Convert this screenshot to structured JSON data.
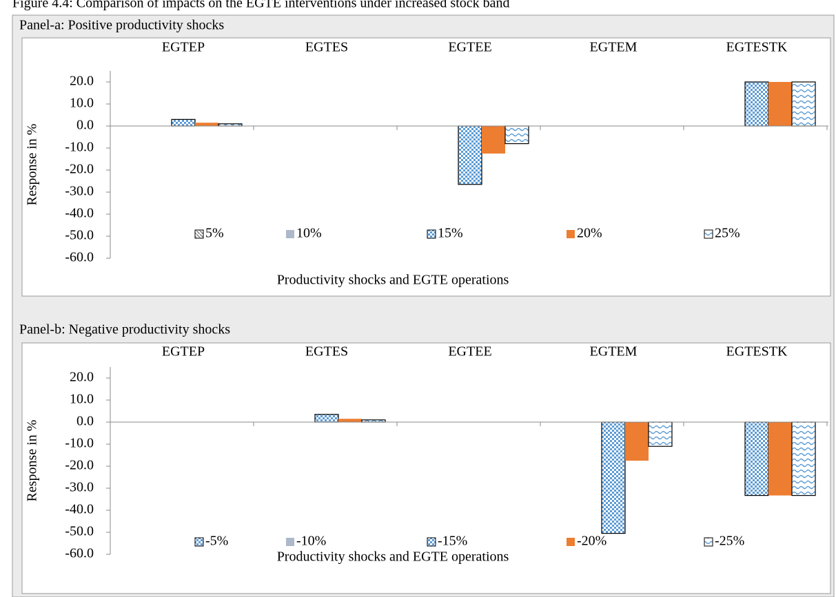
{
  "figure_title": "Figure 4.4: Comparison of impacts on the EGTE interventions under increased stock band",
  "chart_data": [
    {
      "type": "bar",
      "title": "Panel-a: Positive productivity shocks",
      "categories": [
        "EGTEP",
        "EGTES",
        "EGTEE",
        "EGTEM",
        "EGTESTK"
      ],
      "series": [
        {
          "name": "5%",
          "color": "#7f7f7f",
          "pattern": "diagonal",
          "values": [
            0,
            0,
            0,
            0,
            0
          ]
        },
        {
          "name": "10%",
          "color": "#adb9ca",
          "pattern": "solid",
          "values": [
            0,
            0,
            0,
            0,
            0
          ]
        },
        {
          "name": "15%",
          "color": "#5b9bd5",
          "pattern": "checker",
          "values": [
            3.0,
            0,
            -26.5,
            0,
            20.0
          ]
        },
        {
          "name": "20%",
          "color": "#ed7d31",
          "pattern": "solid",
          "values": [
            1.5,
            0,
            -12.5,
            0,
            20.0
          ]
        },
        {
          "name": "25%",
          "color": "#5b9bd5",
          "pattern": "waves",
          "values": [
            1.0,
            0,
            -8.0,
            0,
            20.0
          ]
        }
      ],
      "ylim": [
        -60,
        25
      ],
      "yticks": [
        {
          "value": -60,
          "label": "-60.0"
        },
        {
          "value": -50,
          "label": "-50.0"
        },
        {
          "value": -40,
          "label": "-40.0"
        },
        {
          "value": -30,
          "label": "-30.0"
        },
        {
          "value": -20,
          "label": "-20.0"
        },
        {
          "value": -10,
          "label": "-10.0"
        },
        {
          "value": 0,
          "label": "0.0"
        },
        {
          "value": 10,
          "label": "10.0"
        },
        {
          "value": 20,
          "label": "20.0"
        }
      ],
      "y_label": "Response in %",
      "x_label": "Productivity shocks and EGTE operations"
    },
    {
      "type": "bar",
      "title": "Panel-b: Negative productivity shocks",
      "categories": [
        "EGTEP",
        "EGTES",
        "EGTEE",
        "EGTEM",
        "EGTESTK"
      ],
      "series": [
        {
          "name": "-5%",
          "color": "#7f7f7f",
          "pattern": "checker",
          "values": [
            0,
            0,
            0,
            0,
            0
          ]
        },
        {
          "name": "-10%",
          "color": "#adb9ca",
          "pattern": "solid",
          "values": [
            0,
            0,
            0,
            0,
            0
          ]
        },
        {
          "name": "-15%",
          "color": "#5b9bd5",
          "pattern": "checker",
          "values": [
            0,
            3.5,
            0,
            -50.5,
            -33.3
          ]
        },
        {
          "name": "-20%",
          "color": "#ed7d31",
          "pattern": "solid",
          "values": [
            0,
            1.5,
            0,
            -17.5,
            -33.3
          ]
        },
        {
          "name": "-25%",
          "color": "#5b9bd5",
          "pattern": "waves",
          "values": [
            0,
            1.0,
            0,
            -11.0,
            -33.3
          ]
        }
      ],
      "ylim": [
        -60,
        25
      ],
      "yticks": [
        {
          "value": -60,
          "label": "-60.0"
        },
        {
          "value": -50,
          "label": "-50.0"
        },
        {
          "value": -40,
          "label": "-40.0"
        },
        {
          "value": -30,
          "label": "-30.0"
        },
        {
          "value": -20,
          "label": "-20.0"
        },
        {
          "value": -10,
          "label": "-10.0"
        },
        {
          "value": 0,
          "label": "0.0"
        },
        {
          "value": 10,
          "label": "10.0"
        },
        {
          "value": 20,
          "label": "20.0"
        }
      ],
      "y_label": "Response in %",
      "x_label": "Productivity shocks and EGTE operations"
    }
  ]
}
